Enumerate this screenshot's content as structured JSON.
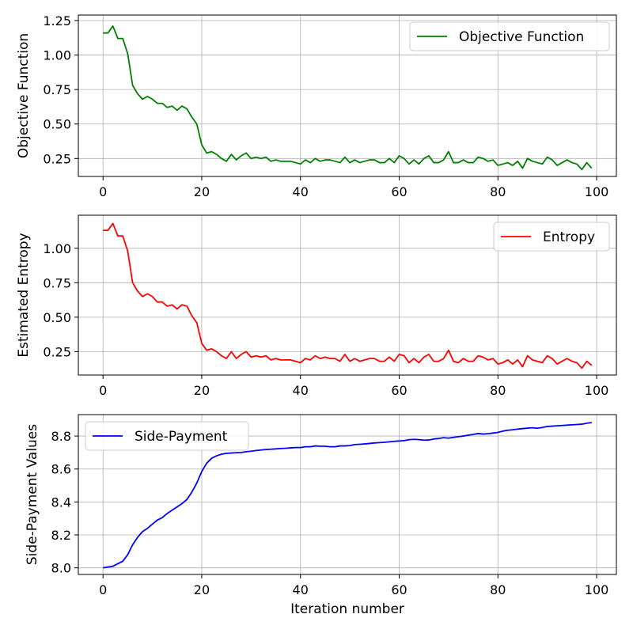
{
  "figure": {
    "x_label": "Iteration number"
  },
  "chart_data": [
    {
      "type": "line",
      "ylabel": "Objective Function",
      "xlim": [
        -5,
        104
      ],
      "ylim": [
        0.12,
        1.29
      ],
      "xticks": [
        0,
        20,
        40,
        60,
        80,
        100
      ],
      "xtick_labels": [
        "0",
        "20",
        "40",
        "60",
        "80",
        "100"
      ],
      "yticks": [
        0.25,
        0.5,
        0.75,
        1.0,
        1.25
      ],
      "ytick_labels": [
        "0.25",
        "0.50",
        "0.75",
        "1.00",
        "1.25"
      ],
      "grid": true,
      "legend_position": "top-right",
      "series": [
        {
          "name": "Objective Function",
          "color": "#008000",
          "x": [
            0,
            1,
            2,
            3,
            4,
            5,
            6,
            7,
            8,
            9,
            10,
            11,
            12,
            13,
            14,
            15,
            16,
            17,
            18,
            19,
            20,
            21,
            22,
            23,
            24,
            25,
            26,
            27,
            28,
            29,
            30,
            31,
            32,
            33,
            34,
            35,
            36,
            37,
            38,
            39,
            40,
            41,
            42,
            43,
            44,
            45,
            46,
            47,
            48,
            49,
            50,
            51,
            52,
            53,
            54,
            55,
            56,
            57,
            58,
            59,
            60,
            61,
            62,
            63,
            64,
            65,
            66,
            67,
            68,
            69,
            70,
            71,
            72,
            73,
            74,
            75,
            76,
            77,
            78,
            79,
            80,
            81,
            82,
            83,
            84,
            85,
            86,
            87,
            88,
            89,
            90,
            91,
            92,
            93,
            94,
            95,
            96,
            97,
            98,
            99
          ],
          "values": [
            1.16,
            1.16,
            1.21,
            1.12,
            1.12,
            1.01,
            0.78,
            0.72,
            0.68,
            0.7,
            0.68,
            0.65,
            0.65,
            0.62,
            0.63,
            0.6,
            0.63,
            0.61,
            0.55,
            0.5,
            0.35,
            0.29,
            0.3,
            0.28,
            0.25,
            0.23,
            0.28,
            0.24,
            0.27,
            0.29,
            0.25,
            0.26,
            0.25,
            0.26,
            0.23,
            0.24,
            0.23,
            0.23,
            0.23,
            0.22,
            0.21,
            0.24,
            0.22,
            0.25,
            0.23,
            0.24,
            0.24,
            0.23,
            0.22,
            0.26,
            0.22,
            0.24,
            0.22,
            0.23,
            0.24,
            0.24,
            0.22,
            0.22,
            0.25,
            0.22,
            0.27,
            0.25,
            0.21,
            0.24,
            0.21,
            0.25,
            0.27,
            0.22,
            0.22,
            0.24,
            0.3,
            0.22,
            0.22,
            0.24,
            0.22,
            0.22,
            0.26,
            0.25,
            0.23,
            0.24,
            0.2,
            0.21,
            0.22,
            0.2,
            0.23,
            0.18,
            0.25,
            0.23,
            0.22,
            0.21,
            0.26,
            0.24,
            0.2,
            0.22,
            0.24,
            0.22,
            0.21,
            0.17,
            0.22,
            0.18
          ]
        }
      ]
    },
    {
      "type": "line",
      "ylabel": "Estimated Entropy",
      "xlim": [
        -5,
        104
      ],
      "ylim": [
        0.08,
        1.24
      ],
      "xticks": [
        0,
        20,
        40,
        60,
        80,
        100
      ],
      "xtick_labels": [
        "0",
        "20",
        "40",
        "60",
        "80",
        "100"
      ],
      "yticks": [
        0.25,
        0.5,
        0.75,
        1.0
      ],
      "ytick_labels": [
        "0.25",
        "0.50",
        "0.75",
        "1.00"
      ],
      "grid": true,
      "legend_position": "top-right",
      "series": [
        {
          "name": "Entropy",
          "color": "#ff0000",
          "x": [
            0,
            1,
            2,
            3,
            4,
            5,
            6,
            7,
            8,
            9,
            10,
            11,
            12,
            13,
            14,
            15,
            16,
            17,
            18,
            19,
            20,
            21,
            22,
            23,
            24,
            25,
            26,
            27,
            28,
            29,
            30,
            31,
            32,
            33,
            34,
            35,
            36,
            37,
            38,
            39,
            40,
            41,
            42,
            43,
            44,
            45,
            46,
            47,
            48,
            49,
            50,
            51,
            52,
            53,
            54,
            55,
            56,
            57,
            58,
            59,
            60,
            61,
            62,
            63,
            64,
            65,
            66,
            67,
            68,
            69,
            70,
            71,
            72,
            73,
            74,
            75,
            76,
            77,
            78,
            79,
            80,
            81,
            82,
            83,
            84,
            85,
            86,
            87,
            88,
            89,
            90,
            91,
            92,
            93,
            94,
            95,
            96,
            97,
            98,
            99
          ],
          "values": [
            1.13,
            1.13,
            1.18,
            1.09,
            1.09,
            0.98,
            0.75,
            0.69,
            0.65,
            0.67,
            0.65,
            0.61,
            0.61,
            0.58,
            0.59,
            0.56,
            0.59,
            0.58,
            0.51,
            0.46,
            0.31,
            0.26,
            0.27,
            0.25,
            0.22,
            0.2,
            0.25,
            0.2,
            0.23,
            0.25,
            0.21,
            0.22,
            0.21,
            0.22,
            0.19,
            0.2,
            0.19,
            0.19,
            0.19,
            0.18,
            0.17,
            0.2,
            0.19,
            0.22,
            0.2,
            0.21,
            0.2,
            0.2,
            0.18,
            0.23,
            0.18,
            0.2,
            0.18,
            0.19,
            0.2,
            0.2,
            0.18,
            0.18,
            0.21,
            0.18,
            0.23,
            0.22,
            0.17,
            0.2,
            0.17,
            0.21,
            0.23,
            0.18,
            0.18,
            0.2,
            0.26,
            0.18,
            0.17,
            0.2,
            0.18,
            0.18,
            0.22,
            0.21,
            0.19,
            0.2,
            0.16,
            0.17,
            0.19,
            0.16,
            0.19,
            0.14,
            0.22,
            0.19,
            0.18,
            0.17,
            0.22,
            0.2,
            0.16,
            0.18,
            0.2,
            0.18,
            0.17,
            0.13,
            0.18,
            0.15
          ]
        }
      ]
    },
    {
      "type": "line",
      "ylabel": "Side-Payment Values",
      "xlabel": "Iteration number",
      "xlim": [
        -5,
        104
      ],
      "ylim": [
        7.96,
        8.93
      ],
      "xticks": [
        0,
        20,
        40,
        60,
        80,
        100
      ],
      "xtick_labels": [
        "0",
        "20",
        "40",
        "60",
        "80",
        "100"
      ],
      "yticks": [
        8.0,
        8.2,
        8.4,
        8.6,
        8.8
      ],
      "ytick_labels": [
        "8.0",
        "8.2",
        "8.4",
        "8.6",
        "8.8"
      ],
      "grid": true,
      "legend_position": "top-left",
      "series": [
        {
          "name": "Side-Payment",
          "color": "#0000ff",
          "x": [
            0,
            1,
            2,
            3,
            4,
            5,
            6,
            7,
            8,
            9,
            10,
            11,
            12,
            13,
            14,
            15,
            16,
            17,
            18,
            19,
            20,
            21,
            22,
            23,
            24,
            25,
            26,
            27,
            28,
            29,
            30,
            31,
            32,
            33,
            34,
            35,
            36,
            37,
            38,
            39,
            40,
            41,
            42,
            43,
            44,
            45,
            46,
            47,
            48,
            49,
            50,
            51,
            52,
            53,
            54,
            55,
            56,
            57,
            58,
            59,
            60,
            61,
            62,
            63,
            64,
            65,
            66,
            67,
            68,
            69,
            70,
            71,
            72,
            73,
            74,
            75,
            76,
            77,
            78,
            79,
            80,
            81,
            82,
            83,
            84,
            85,
            86,
            87,
            88,
            89,
            90,
            91,
            92,
            93,
            94,
            95,
            96,
            97,
            98,
            99
          ],
          "values": [
            8.0,
            8.005,
            8.01,
            8.025,
            8.04,
            8.08,
            8.14,
            8.185,
            8.22,
            8.24,
            8.265,
            8.29,
            8.305,
            8.33,
            8.35,
            8.37,
            8.39,
            8.415,
            8.46,
            8.515,
            8.585,
            8.635,
            8.665,
            8.68,
            8.69,
            8.695,
            8.697,
            8.699,
            8.7,
            8.705,
            8.708,
            8.712,
            8.715,
            8.718,
            8.72,
            8.722,
            8.724,
            8.726,
            8.728,
            8.73,
            8.73,
            8.735,
            8.735,
            8.74,
            8.738,
            8.738,
            8.735,
            8.735,
            8.74,
            8.74,
            8.742,
            8.748,
            8.75,
            8.752,
            8.755,
            8.758,
            8.76,
            8.762,
            8.765,
            8.768,
            8.77,
            8.772,
            8.778,
            8.78,
            8.778,
            8.775,
            8.776,
            8.782,
            8.785,
            8.79,
            8.787,
            8.792,
            8.796,
            8.8,
            8.805,
            8.81,
            8.815,
            8.812,
            8.814,
            8.818,
            8.822,
            8.83,
            8.835,
            8.838,
            8.842,
            8.845,
            8.848,
            8.85,
            8.847,
            8.852,
            8.858,
            8.86,
            8.862,
            8.864,
            8.866,
            8.868,
            8.87,
            8.872,
            8.878,
            8.882
          ]
        }
      ]
    }
  ]
}
